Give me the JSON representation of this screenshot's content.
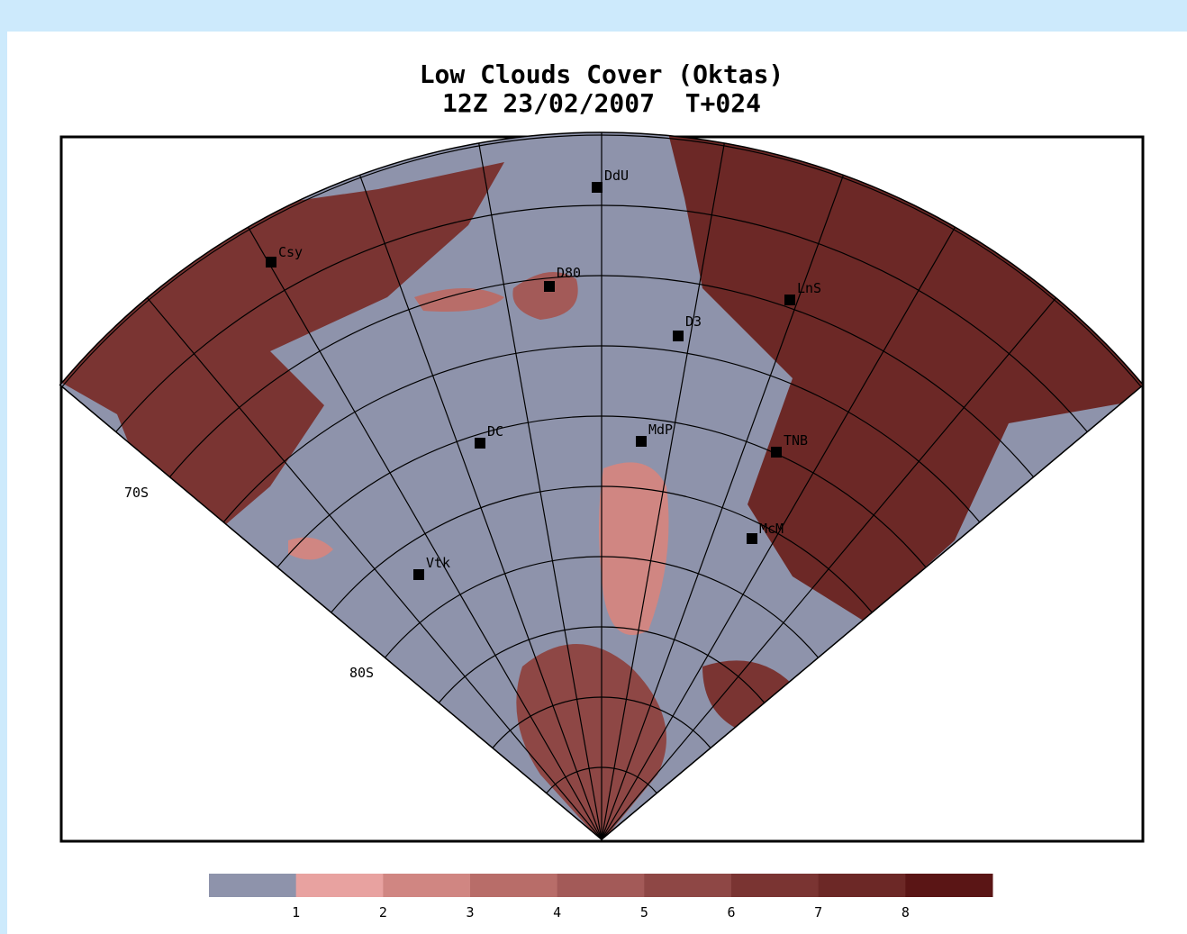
{
  "title": "Low Clouds Cover (Oktas)",
  "subtitle": "12Z 23/02/2007  T+024",
  "latitude_labels": [
    "70S",
    "80S"
  ],
  "stations": [
    "DdU",
    "D80",
    "Csy",
    "LnS",
    "D3",
    "DC",
    "MdP",
    "TNB",
    "McM",
    "Vtk"
  ],
  "colorbar": {
    "colors": [
      "#8e93ab",
      "#e8a2a0",
      "#d08682",
      "#b86d69",
      "#a35a58",
      "#8e4745",
      "#7a3432",
      "#6c2826",
      "#5a1515"
    ],
    "ticks": [
      1,
      2,
      3,
      4,
      5,
      6,
      7,
      8
    ]
  }
}
